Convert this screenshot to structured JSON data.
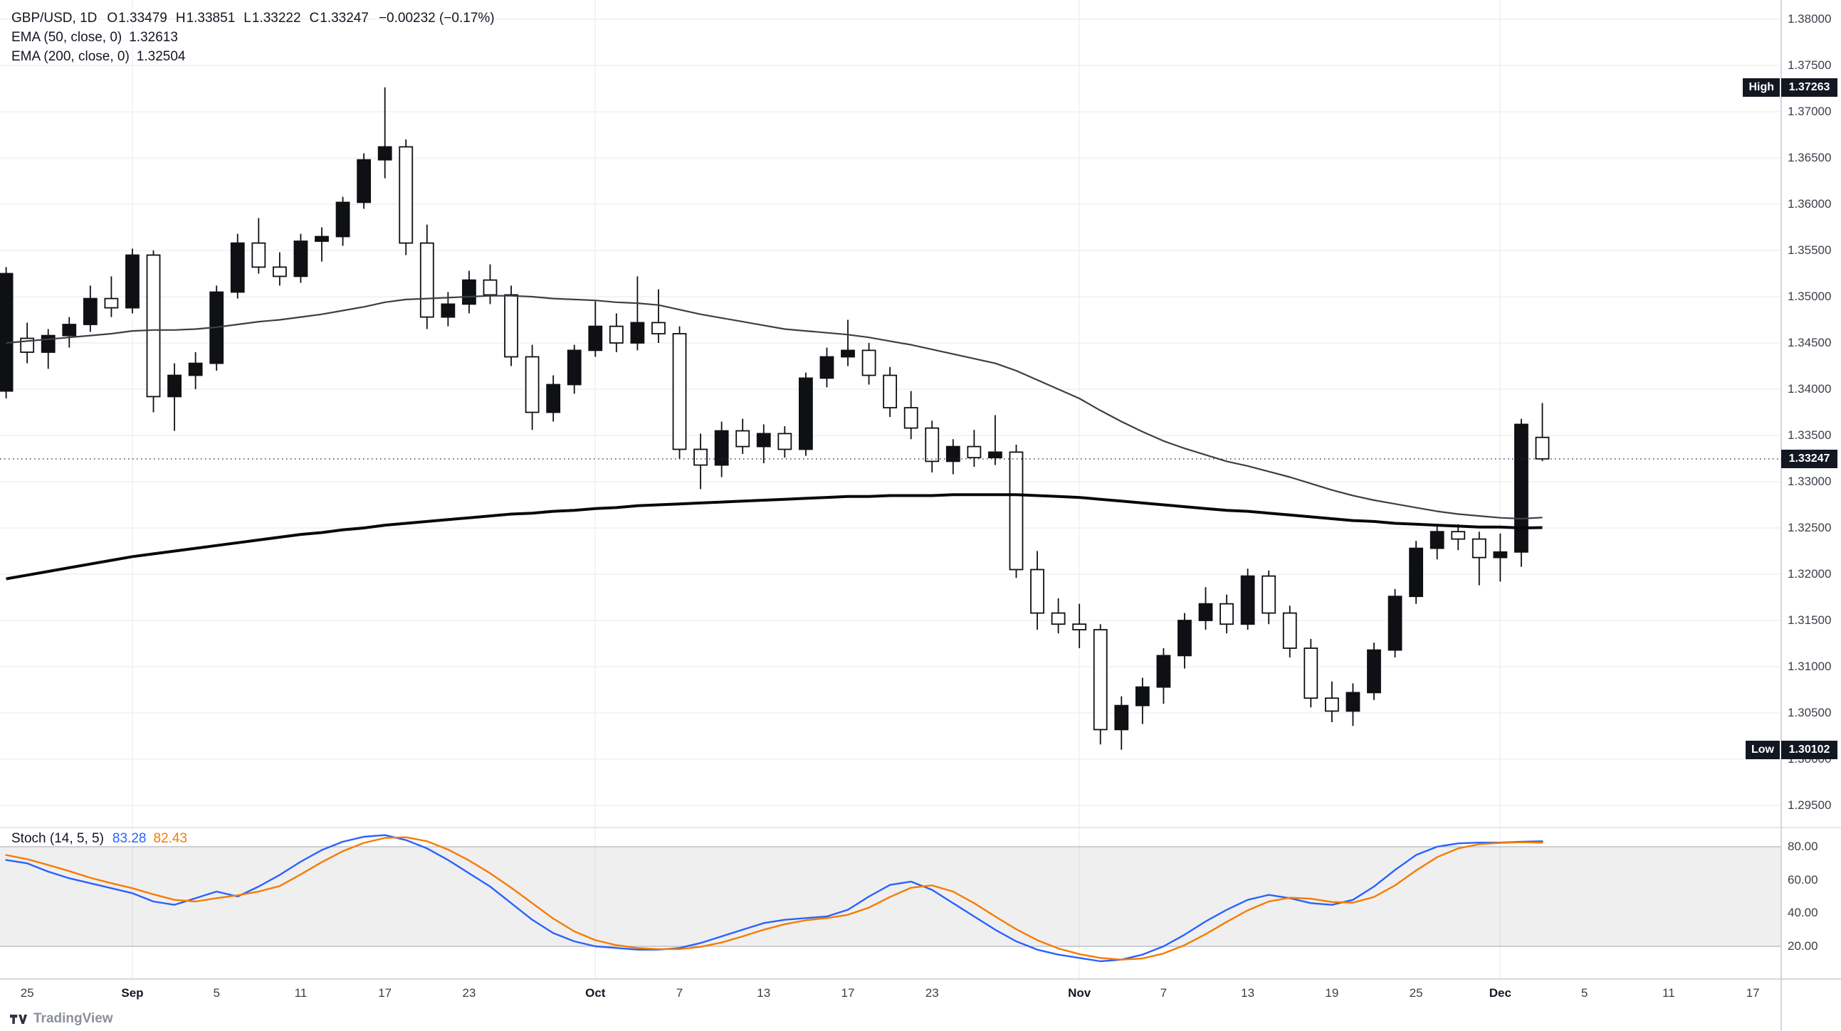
{
  "app": {
    "watermark": "TradingView"
  },
  "legend": {
    "symbol": "GBP/USD, 1D",
    "o_label": "O",
    "open": "1.33479",
    "h_label": "H",
    "high": "1.33851",
    "l_label": "L",
    "low": "1.33222",
    "c_label": "C",
    "close": "1.33247",
    "change": "−0.00232 (−0.17%)"
  },
  "indicators": {
    "ema50": {
      "label": "EMA (50, close, 0)",
      "value": "1.32613"
    },
    "ema200": {
      "label": "EMA (200, close, 0)",
      "value": "1.32504"
    },
    "stoch": {
      "label": "Stoch (14, 5, 5)",
      "k_value": "83.28",
      "d_value": "82.43"
    }
  },
  "badges": {
    "high": {
      "label": "High",
      "value": "1.37263",
      "price": 1.37263
    },
    "last": {
      "value": "1.33247",
      "price": 1.33247
    },
    "low": {
      "label": "Low",
      "value": "1.30102",
      "price": 1.30102
    }
  },
  "price_axis": {
    "ticks": [
      "1.38000",
      "1.37500",
      "1.37000",
      "1.36500",
      "1.36000",
      "1.35500",
      "1.35000",
      "1.34500",
      "1.34000",
      "1.33500",
      "1.33000",
      "1.32500",
      "1.32000",
      "1.31500",
      "1.31000",
      "1.30500",
      "1.30000",
      "1.29500"
    ]
  },
  "stoch_axis": {
    "ticks": [
      "80.00",
      "60.00",
      "40.00",
      "20.00"
    ]
  },
  "time_axis": {
    "ticks": [
      {
        "label": "25",
        "i": 1
      },
      {
        "label": "Sep",
        "i": 6,
        "month": true
      },
      {
        "label": "5",
        "i": 10
      },
      {
        "label": "11",
        "i": 14
      },
      {
        "label": "17",
        "i": 18
      },
      {
        "label": "23",
        "i": 22
      },
      {
        "label": "Oct",
        "i": 28,
        "month": true
      },
      {
        "label": "7",
        "i": 32
      },
      {
        "label": "13",
        "i": 36
      },
      {
        "label": "17",
        "i": 40
      },
      {
        "label": "23",
        "i": 44
      },
      {
        "label": "Nov",
        "i": 51,
        "month": true
      },
      {
        "label": "7",
        "i": 55
      },
      {
        "label": "13",
        "i": 59
      },
      {
        "label": "19",
        "i": 63
      },
      {
        "label": "25",
        "i": 67
      },
      {
        "label": "Dec",
        "i": 71,
        "month": true
      },
      {
        "label": "5",
        "i": 75
      },
      {
        "label": "11",
        "i": 79
      },
      {
        "label": "17",
        "i": 83
      }
    ]
  },
  "chart_data": [
    {
      "type": "candlestick",
      "title": "GBP/USD, 1D",
      "ylim": [
        1.2926,
        1.3821
      ],
      "up_color": "#0f1014",
      "down_color": "#ffffff",
      "dates": [
        "Aug 22",
        "Aug 25",
        "Aug 26",
        "Aug 27",
        "Aug 28",
        "Aug 29",
        "Sep 1",
        "Sep 2",
        "Sep 3",
        "Sep 4",
        "Sep 5",
        "Sep 8",
        "Sep 9",
        "Sep 10",
        "Sep 11",
        "Sep 12",
        "Sep 15",
        "Sep 16",
        "Sep 17",
        "Sep 18",
        "Sep 19",
        "Sep 22",
        "Sep 23",
        "Sep 24",
        "Sep 25",
        "Sep 26",
        "Sep 29",
        "Sep 30",
        "Oct 1",
        "Oct 2",
        "Oct 3",
        "Oct 6",
        "Oct 7",
        "Oct 8",
        "Oct 9",
        "Oct 10",
        "Oct 13",
        "Oct 14",
        "Oct 15",
        "Oct 16",
        "Oct 17",
        "Oct 20",
        "Oct 21",
        "Oct 22",
        "Oct 23",
        "Oct 24",
        "Oct 27",
        "Oct 28",
        "Oct 29",
        "Oct 30",
        "Oct 31",
        "Nov 3",
        "Nov 4",
        "Nov 5",
        "Nov 6",
        "Nov 7",
        "Nov 10",
        "Nov 11",
        "Nov 12",
        "Nov 13",
        "Nov 14",
        "Nov 17",
        "Nov 18",
        "Nov 19",
        "Nov 20",
        "Nov 21",
        "Nov 24",
        "Nov 25",
        "Nov 26",
        "Nov 27",
        "Nov 28",
        "Dec 1",
        "Dec 2",
        "Dec 3"
      ],
      "ohlc": [
        [
          1.3398,
          1.3532,
          1.339,
          1.3525
        ],
        [
          1.3455,
          1.3472,
          1.3428,
          1.344
        ],
        [
          1.344,
          1.3465,
          1.3422,
          1.3458
        ],
        [
          1.3458,
          1.3478,
          1.3445,
          1.347
        ],
        [
          1.347,
          1.3512,
          1.3462,
          1.3498
        ],
        [
          1.3498,
          1.3522,
          1.3478,
          1.3488
        ],
        [
          1.3488,
          1.3552,
          1.3482,
          1.3545
        ],
        [
          1.3545,
          1.355,
          1.3375,
          1.3392
        ],
        [
          1.3392,
          1.3428,
          1.3355,
          1.3415
        ],
        [
          1.3415,
          1.344,
          1.34,
          1.3428
        ],
        [
          1.3428,
          1.3512,
          1.342,
          1.3505
        ],
        [
          1.3505,
          1.3568,
          1.3498,
          1.3558
        ],
        [
          1.3558,
          1.3585,
          1.3525,
          1.3532
        ],
        [
          1.3532,
          1.3548,
          1.3512,
          1.3522
        ],
        [
          1.3522,
          1.3568,
          1.3515,
          1.356
        ],
        [
          1.356,
          1.3575,
          1.3538,
          1.3565
        ],
        [
          1.3565,
          1.3608,
          1.3555,
          1.3602
        ],
        [
          1.3602,
          1.3655,
          1.3595,
          1.3648
        ],
        [
          1.3648,
          1.37263,
          1.3628,
          1.3662
        ],
        [
          1.3662,
          1.367,
          1.3545,
          1.3558
        ],
        [
          1.3558,
          1.3578,
          1.3465,
          1.3478
        ],
        [
          1.3478,
          1.3505,
          1.3468,
          1.3492
        ],
        [
          1.3492,
          1.3528,
          1.3482,
          1.3518
        ],
        [
          1.3518,
          1.3535,
          1.3492,
          1.3502
        ],
        [
          1.3502,
          1.3512,
          1.3425,
          1.3435
        ],
        [
          1.3435,
          1.3448,
          1.3356,
          1.3375
        ],
        [
          1.3375,
          1.3415,
          1.3365,
          1.3405
        ],
        [
          1.3405,
          1.3448,
          1.3395,
          1.3442
        ],
        [
          1.3442,
          1.3495,
          1.3435,
          1.3468
        ],
        [
          1.3468,
          1.3482,
          1.344,
          1.345
        ],
        [
          1.345,
          1.3522,
          1.3442,
          1.3472
        ],
        [
          1.3472,
          1.3508,
          1.345,
          1.346
        ],
        [
          1.346,
          1.3468,
          1.3325,
          1.3335
        ],
        [
          1.3335,
          1.3352,
          1.3292,
          1.3318
        ],
        [
          1.3318,
          1.3365,
          1.3305,
          1.3355
        ],
        [
          1.3355,
          1.3368,
          1.333,
          1.3338
        ],
        [
          1.3338,
          1.3362,
          1.332,
          1.3352
        ],
        [
          1.3352,
          1.336,
          1.3326,
          1.3335
        ],
        [
          1.3335,
          1.3418,
          1.3328,
          1.3412
        ],
        [
          1.3412,
          1.3445,
          1.3402,
          1.3435
        ],
        [
          1.3435,
          1.3475,
          1.3425,
          1.3442
        ],
        [
          1.3442,
          1.345,
          1.3405,
          1.3415
        ],
        [
          1.3415,
          1.3424,
          1.337,
          1.338
        ],
        [
          1.338,
          1.3398,
          1.3346,
          1.3358
        ],
        [
          1.3358,
          1.3366,
          1.331,
          1.3322
        ],
        [
          1.3322,
          1.3346,
          1.3308,
          1.3338
        ],
        [
          1.3338,
          1.3356,
          1.3316,
          1.3326
        ],
        [
          1.3326,
          1.3372,
          1.3318,
          1.3332
        ],
        [
          1.3332,
          1.334,
          1.3196,
          1.3205
        ],
        [
          1.3205,
          1.3225,
          1.314,
          1.3158
        ],
        [
          1.3158,
          1.3174,
          1.3136,
          1.3146
        ],
        [
          1.3146,
          1.3168,
          1.312,
          1.314
        ],
        [
          1.314,
          1.3146,
          1.3016,
          1.3032
        ],
        [
          1.3032,
          1.3068,
          1.30102,
          1.3058
        ],
        [
          1.3058,
          1.3088,
          1.3038,
          1.3078
        ],
        [
          1.3078,
          1.312,
          1.306,
          1.3112
        ],
        [
          1.3112,
          1.3158,
          1.3098,
          1.315
        ],
        [
          1.315,
          1.3186,
          1.314,
          1.3168
        ],
        [
          1.3168,
          1.3178,
          1.3136,
          1.3146
        ],
        [
          1.3146,
          1.3206,
          1.314,
          1.3198
        ],
        [
          1.3198,
          1.3204,
          1.3146,
          1.3158
        ],
        [
          1.3158,
          1.3166,
          1.311,
          1.312
        ],
        [
          1.312,
          1.313,
          1.3056,
          1.3066
        ],
        [
          1.3066,
          1.3084,
          1.304,
          1.3052
        ],
        [
          1.3052,
          1.3082,
          1.3036,
          1.3072
        ],
        [
          1.3072,
          1.3126,
          1.3064,
          1.3118
        ],
        [
          1.3118,
          1.3184,
          1.311,
          1.3176
        ],
        [
          1.3176,
          1.3236,
          1.3168,
          1.3228
        ],
        [
          1.3228,
          1.3254,
          1.3216,
          1.3246
        ],
        [
          1.3246,
          1.3254,
          1.3226,
          1.3238
        ],
        [
          1.3238,
          1.3246,
          1.3188,
          1.3218
        ],
        [
          1.3218,
          1.3244,
          1.3192,
          1.3224
        ],
        [
          1.3224,
          1.3368,
          1.3208,
          1.3362
        ],
        [
          1.33479,
          1.33851,
          1.33222,
          1.33247
        ]
      ],
      "series": [
        {
          "name": "EMA 50",
          "values": [
            1.345,
            1.3452,
            1.3454,
            1.3456,
            1.3458,
            1.346,
            1.3463,
            1.3464,
            1.3464,
            1.3465,
            1.3467,
            1.347,
            1.3473,
            1.3475,
            1.3478,
            1.3481,
            1.3485,
            1.3489,
            1.3494,
            1.3497,
            1.3498,
            1.3499,
            1.35,
            1.3501,
            1.3501,
            1.35,
            1.3498,
            1.3497,
            1.3496,
            1.3494,
            1.3493,
            1.3491,
            1.3486,
            1.3481,
            1.3477,
            1.3473,
            1.3469,
            1.3465,
            1.3463,
            1.3461,
            1.3459,
            1.3456,
            1.3452,
            1.3448,
            1.3443,
            1.3438,
            1.3433,
            1.3428,
            1.342,
            1.341,
            1.34,
            1.339,
            1.3377,
            1.3365,
            1.3354,
            1.3344,
            1.3336,
            1.3329,
            1.3322,
            1.3317,
            1.3311,
            1.3305,
            1.3298,
            1.3291,
            1.3285,
            1.328,
            1.3276,
            1.3272,
            1.3268,
            1.3265,
            1.3263,
            1.3261,
            1.326,
            1.32613
          ]
        },
        {
          "name": "EMA 200",
          "values": [
            1.3195,
            1.3199,
            1.3203,
            1.3207,
            1.3211,
            1.3215,
            1.3219,
            1.3222,
            1.3225,
            1.3228,
            1.3231,
            1.3234,
            1.3237,
            1.324,
            1.3243,
            1.3245,
            1.3248,
            1.325,
            1.3253,
            1.3255,
            1.3257,
            1.3259,
            1.3261,
            1.3263,
            1.3265,
            1.3266,
            1.3268,
            1.3269,
            1.3271,
            1.3272,
            1.3274,
            1.3275,
            1.3276,
            1.3277,
            1.3278,
            1.3279,
            1.328,
            1.3281,
            1.3282,
            1.3283,
            1.3284,
            1.3284,
            1.3285,
            1.3285,
            1.3285,
            1.3286,
            1.3286,
            1.3286,
            1.3286,
            1.3285,
            1.3284,
            1.3283,
            1.3281,
            1.3279,
            1.3277,
            1.3275,
            1.3273,
            1.3271,
            1.3269,
            1.3268,
            1.3266,
            1.3264,
            1.3262,
            1.326,
            1.3258,
            1.3257,
            1.3255,
            1.3254,
            1.3253,
            1.3252,
            1.3251,
            1.3251,
            1.325,
            1.32504
          ]
        }
      ]
    },
    {
      "type": "line",
      "title": "Stoch (14, 5, 5)",
      "ylim": [
        0,
        100
      ],
      "band": [
        20,
        80
      ],
      "series": [
        {
          "name": "%K",
          "color": "#2962ff",
          "values": [
            72,
            70,
            65,
            61,
            58,
            55,
            52,
            47,
            45,
            49,
            53,
            50,
            56,
            63,
            71,
            78,
            83,
            86,
            87,
            84,
            79,
            72,
            64,
            56,
            46,
            36,
            28,
            23,
            20,
            19,
            18,
            18,
            19,
            22,
            26,
            30,
            34,
            36,
            37,
            38,
            42,
            50,
            57,
            59,
            54,
            46,
            38,
            30,
            23,
            18,
            15,
            13,
            11,
            12,
            15,
            20,
            27,
            35,
            42,
            48,
            51,
            49,
            46,
            45,
            48,
            56,
            66,
            75,
            80,
            82,
            82.5,
            82.5,
            83,
            83.28
          ]
        },
        {
          "name": "%D",
          "color": "#f57c00",
          "values": [
            75,
            72.5,
            69,
            65.3,
            61.3,
            58,
            55,
            51.3,
            48,
            47,
            49,
            50.7,
            53,
            56.3,
            63.3,
            70.7,
            77.3,
            82.3,
            85.3,
            85.7,
            83.3,
            78.3,
            71.7,
            64,
            55.3,
            46,
            36.7,
            29,
            23.7,
            20.7,
            19,
            18.3,
            18.3,
            19.7,
            22.3,
            26,
            30,
            33.3,
            35.7,
            37,
            39,
            43.3,
            49.7,
            55.3,
            56.7,
            53,
            46,
            38,
            30.3,
            23.7,
            18.7,
            15.3,
            13,
            12,
            12.7,
            15.7,
            20.7,
            27.3,
            34.7,
            41.7,
            47,
            49.3,
            48.7,
            46.7,
            46.3,
            49.7,
            56.7,
            65.7,
            73.7,
            79,
            81.5,
            82.3,
            82.7,
            82.43
          ]
        }
      ]
    }
  ]
}
